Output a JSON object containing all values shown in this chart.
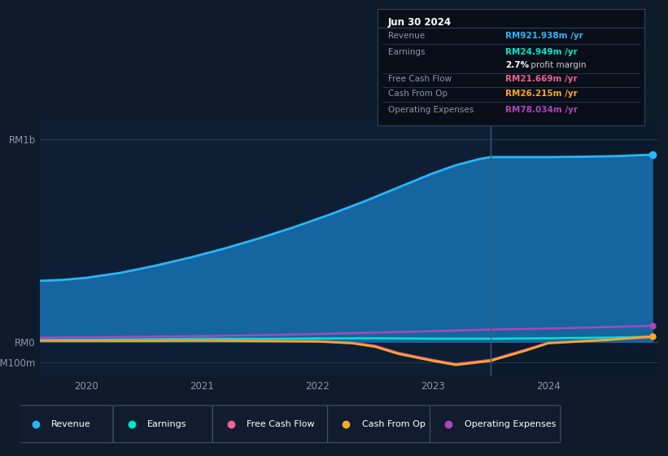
{
  "bg_color": "#0d1b2a",
  "plot_bg": "#0e1f35",
  "title_date": "Jun 30 2024",
  "info_box": {
    "Revenue": {
      "value": "RM921.938m /yr",
      "color": "#29b6f6"
    },
    "Earnings": {
      "value": "RM24.949m /yr",
      "color": "#00e5cc"
    },
    "Free Cash Flow": {
      "value": "RM21.669m /yr",
      "color": "#f06292"
    },
    "Cash From Op": {
      "value": "RM26.215m /yr",
      "color": "#ffa726"
    },
    "Operating Expenses": {
      "value": "RM78.034m /yr",
      "color": "#ab47bc"
    }
  },
  "x_ticks": [
    2020,
    2021,
    2022,
    2023,
    2024
  ],
  "x_range": [
    2019.6,
    2024.95
  ],
  "y_range": [
    -170000000,
    1100000000
  ],
  "y_ticks": [
    -100000000,
    0,
    1000000000
  ],
  "y_tick_labels": [
    "-RM100m",
    "RM0",
    "RM1b"
  ],
  "vline_x": 2023.5,
  "series": {
    "Revenue": {
      "fill_color": "#1565a0",
      "line_color": "#29b6f6",
      "x": [
        2019.6,
        2019.8,
        2020.0,
        2020.3,
        2020.6,
        2020.9,
        2021.2,
        2021.5,
        2021.8,
        2022.1,
        2022.4,
        2022.7,
        2023.0,
        2023.2,
        2023.4,
        2023.5,
        2023.7,
        2024.0,
        2024.3,
        2024.6,
        2024.9
      ],
      "y": [
        300000000,
        305000000,
        315000000,
        340000000,
        375000000,
        415000000,
        460000000,
        510000000,
        565000000,
        625000000,
        690000000,
        760000000,
        830000000,
        870000000,
        900000000,
        910000000,
        910000000,
        910000000,
        912000000,
        915000000,
        921938000
      ]
    },
    "Earnings": {
      "color": "#00e5cc",
      "x": [
        2019.6,
        2020.0,
        2020.5,
        2021.0,
        2021.5,
        2022.0,
        2022.5,
        2023.0,
        2023.5,
        2024.0,
        2024.5,
        2024.9
      ],
      "y": [
        8000000,
        10000000,
        12000000,
        15000000,
        14000000,
        16000000,
        17000000,
        15000000,
        15000000,
        17000000,
        20000000,
        24949000
      ]
    },
    "Free Cash Flow": {
      "color": "#f06292",
      "x": [
        2019.6,
        2020.0,
        2020.5,
        2021.0,
        2021.5,
        2022.0,
        2022.3,
        2022.5,
        2022.7,
        2023.0,
        2023.2,
        2023.5,
        2023.8,
        2024.0,
        2024.5,
        2024.9
      ],
      "y": [
        5000000,
        5000000,
        6000000,
        7000000,
        5000000,
        3000000,
        -5000000,
        -20000000,
        -55000000,
        -90000000,
        -110000000,
        -90000000,
        -40000000,
        -5000000,
        10000000,
        21669000
      ]
    },
    "Cash From Op": {
      "color": "#ffa726",
      "x": [
        2019.6,
        2020.0,
        2020.5,
        2021.0,
        2021.5,
        2022.0,
        2022.3,
        2022.5,
        2022.7,
        2023.0,
        2023.2,
        2023.5,
        2023.8,
        2024.0,
        2024.5,
        2024.9
      ],
      "y": [
        5000000,
        4000000,
        4000000,
        5000000,
        3000000,
        1000000,
        -8000000,
        -25000000,
        -60000000,
        -95000000,
        -115000000,
        -95000000,
        -45000000,
        -8000000,
        8000000,
        26215000
      ]
    },
    "Operating Expenses": {
      "color": "#ab47bc",
      "x": [
        2019.6,
        2020.0,
        2020.5,
        2021.0,
        2021.5,
        2022.0,
        2022.5,
        2023.0,
        2023.5,
        2024.0,
        2024.5,
        2024.9
      ],
      "y": [
        20000000,
        22000000,
        25000000,
        28000000,
        32000000,
        38000000,
        45000000,
        52000000,
        60000000,
        65000000,
        72000000,
        78034000
      ]
    }
  },
  "legend": [
    {
      "label": "Revenue",
      "color": "#29b6f6"
    },
    {
      "label": "Earnings",
      "color": "#00e5cc"
    },
    {
      "label": "Free Cash Flow",
      "color": "#f06292"
    },
    {
      "label": "Cash From Op",
      "color": "#ffa726"
    },
    {
      "label": "Operating Expenses",
      "color": "#ab47bc"
    }
  ]
}
